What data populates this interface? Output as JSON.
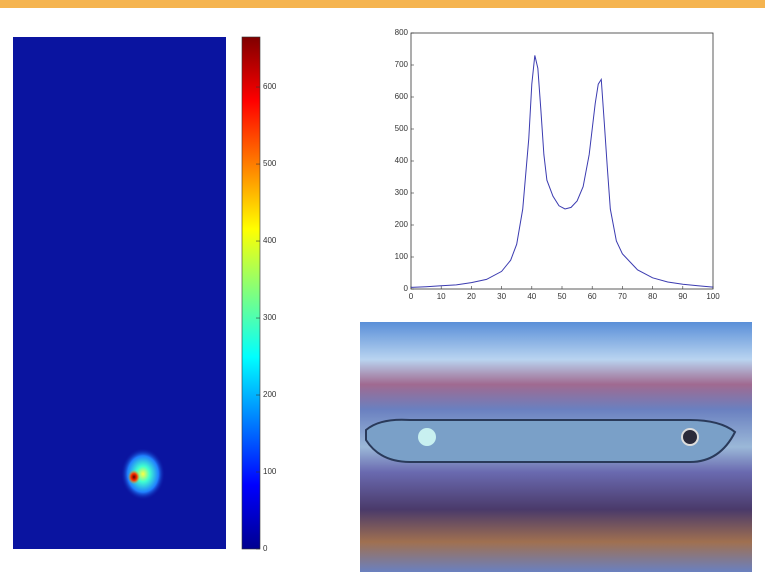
{
  "chart_data": [
    {
      "type": "heatmap",
      "clim": [
        0,
        665
      ],
      "cticks": [
        0,
        100,
        200,
        300,
        400,
        500,
        600
      ]
    },
    {
      "type": "line",
      "xlim": [
        0,
        100
      ],
      "ylim": [
        0,
        800
      ],
      "xticks": [
        0,
        10,
        20,
        30,
        40,
        50,
        60,
        70,
        80,
        90,
        100
      ],
      "yticks": [
        0,
        100,
        200,
        300,
        400,
        500,
        600,
        700,
        800
      ],
      "x": [
        0,
        5,
        10,
        15,
        20,
        25,
        30,
        33,
        35,
        37,
        39,
        40,
        41,
        42,
        43,
        44,
        45,
        47,
        49,
        51,
        53,
        55,
        57,
        59,
        61,
        62,
        63,
        64,
        65,
        66,
        68,
        70,
        75,
        80,
        85,
        90,
        95,
        100
      ],
      "series": [
        {
          "color": "#3b3bb0",
          "values": [
            5,
            7,
            10,
            13,
            20,
            30,
            55,
            90,
            140,
            250,
            470,
            640,
            730,
            690,
            560,
            420,
            340,
            290,
            260,
            250,
            255,
            275,
            320,
            420,
            580,
            640,
            655,
            520,
            380,
            250,
            150,
            110,
            60,
            35,
            22,
            15,
            10,
            6
          ]
        }
      ]
    }
  ]
}
